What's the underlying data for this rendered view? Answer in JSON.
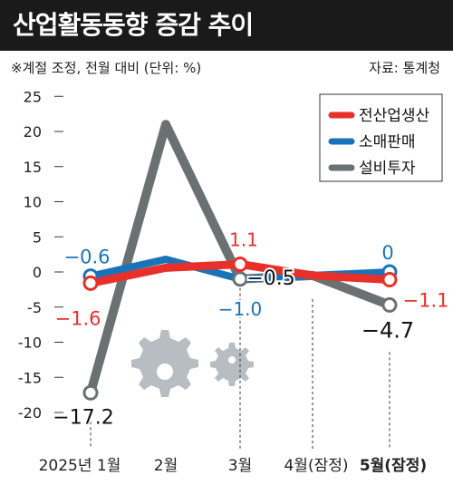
{
  "header": {
    "title": "산업활동동향 증감 추이"
  },
  "note": "※계절 조정, 전월 대비 (단위: %)",
  "source": "자료: 통계청",
  "colors": {
    "industry": "#e8302a",
    "retail": "#1a73b8",
    "facility": "#6b7073"
  },
  "chart_data": {
    "type": "line",
    "categories": [
      "2025년 1월",
      "2월",
      "3월",
      "4월(잠정)",
      "5월(잠정)"
    ],
    "ylim": [
      -20,
      25
    ],
    "yticks": [
      "25",
      "20",
      "15",
      "10",
      "5",
      "0",
      "-5",
      "-10",
      "-15",
      "-20"
    ],
    "series": [
      {
        "name": "설비투자",
        "values": [
          -17.2,
          21,
          -1.0,
          -0.5,
          -4.7
        ],
        "color": "#6b7073"
      },
      {
        "name": "소매판매",
        "values": [
          -0.6,
          1.8,
          -1.0,
          -0.5,
          0
        ],
        "color": "#1a73b8"
      },
      {
        "name": "전산업생산",
        "values": [
          -1.6,
          0.6,
          1.1,
          -0.5,
          -1.1
        ],
        "color": "#e8302a"
      }
    ],
    "legend": [
      "전산업생산",
      "소매판매",
      "설비투자"
    ],
    "annotations": [
      {
        "text": "−0.6",
        "series": "소매판매",
        "x": "2025년 1월",
        "y": -0.6
      },
      {
        "text": "−1.6",
        "series": "전산업생산",
        "x": "2025년 1월",
        "y": -1.6
      },
      {
        "text": "−17.2",
        "series": "설비투자",
        "x": "2025년 1월",
        "y": -17.2
      },
      {
        "text": "1.1",
        "series": "전산업생산",
        "x": "3월",
        "y": 1.1
      },
      {
        "text": "−1.0",
        "series": "소매판매",
        "x": "3월",
        "y": -1.0
      },
      {
        "text": "−0.5",
        "series": "설비투자",
        "x": "4월(잠정)",
        "y": -0.5
      },
      {
        "text": "0",
        "series": "소매판매",
        "x": "5월(잠정)",
        "y": 0
      },
      {
        "text": "−1.1",
        "series": "전산업생산",
        "x": "5월(잠정)",
        "y": -1.1
      },
      {
        "text": "−4.7",
        "series": "설비투자",
        "x": "5월(잠정)",
        "y": -4.7
      }
    ]
  }
}
